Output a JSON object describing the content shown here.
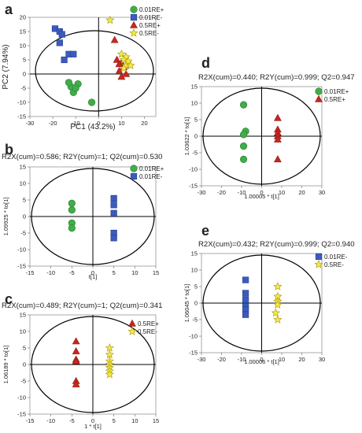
{
  "colors": {
    "green": "#3fae49",
    "blue": "#3b5bbf",
    "red": "#c8281e",
    "yellow": "#f6e84a"
  },
  "chart_data": [
    {
      "panel": "a",
      "type": "scatter",
      "title": "",
      "xlabel": "PC1 (43.2%)",
      "ylabel": "PC2 (7.94%)",
      "xlim": [
        -30,
        25
      ],
      "ylim": [
        -15,
        20
      ],
      "xticks": [
        -30,
        -20,
        -10,
        0,
        10,
        20
      ],
      "yticks": [
        -15,
        -10,
        -5,
        0,
        5,
        10,
        15,
        20
      ],
      "legend_position": "top-right",
      "series": [
        {
          "name": "0.01RE+",
          "marker": "circle",
          "color": "green",
          "points": [
            [
              -9,
              -3.5
            ],
            [
              -12,
              -4.5
            ],
            [
              -11,
              -6.5
            ],
            [
              -13,
              -3
            ],
            [
              -10,
              -5
            ],
            [
              -3,
              -10
            ]
          ]
        },
        {
          "name": "0.01RE-",
          "marker": "square",
          "color": "blue",
          "points": [
            [
              -19,
              16
            ],
            [
              -17,
              15
            ],
            [
              -16,
              14
            ],
            [
              -17,
              11
            ],
            [
              -13,
              7
            ],
            [
              -11,
              7
            ],
            [
              -15,
              5
            ]
          ]
        },
        {
          "name": "0.5RE+",
          "marker": "triangle",
          "color": "red",
          "points": [
            [
              7,
              12
            ],
            [
              8,
              5
            ],
            [
              10,
              4
            ],
            [
              9,
              3.5
            ],
            [
              11,
              2.5
            ],
            [
              9,
              1
            ],
            [
              12,
              0
            ],
            [
              10,
              -1
            ]
          ]
        },
        {
          "name": "0.5RE-",
          "marker": "star",
          "color": "yellow",
          "points": [
            [
              5,
              19
            ],
            [
              10,
              7
            ],
            [
              12,
              6
            ],
            [
              11,
              5
            ],
            [
              13,
              4.5
            ],
            [
              12,
              3
            ],
            [
              14,
              3
            ],
            [
              11,
              2
            ]
          ]
        }
      ]
    },
    {
      "panel": "b",
      "type": "scatter",
      "title": "R2X(cum)=0.586; R2Y(cum)=1; Q2(cum)=0.530",
      "xlabel": "t[1]",
      "ylabel": "1.09925 * to[1]",
      "xlim": [
        -15,
        15
      ],
      "ylim": [
        -15,
        15
      ],
      "xticks": [
        -15,
        -10,
        -5,
        0,
        5,
        10,
        15
      ],
      "yticks": [
        -15,
        -10,
        -5,
        0,
        5,
        10,
        15
      ],
      "legend_position": "top-right",
      "series": [
        {
          "name": "0.01RE+",
          "marker": "circle",
          "color": "green",
          "points": [
            [
              -5,
              4
            ],
            [
              -5,
              2
            ],
            [
              -5,
              -2
            ],
            [
              -5,
              -3.5
            ]
          ]
        },
        {
          "name": "0.01RE-",
          "marker": "square",
          "color": "blue",
          "points": [
            [
              5,
              5.5
            ],
            [
              5,
              3.5
            ],
            [
              5,
              1
            ],
            [
              5,
              -5
            ],
            [
              5,
              -6.5
            ]
          ]
        }
      ]
    },
    {
      "panel": "c",
      "type": "scatter",
      "title": "R2X(cum)=0.489; R2Y(cum)=1; Q2(cum)=0.341",
      "xlabel": "1 * t[1]",
      "ylabel": "1.06189 * to[1]",
      "xlim": [
        -15,
        15
      ],
      "ylim": [
        -15,
        15
      ],
      "xticks": [
        -15,
        -10,
        -5,
        0,
        5,
        10,
        15
      ],
      "yticks": [
        -15,
        -10,
        -5,
        0,
        5,
        10,
        15
      ],
      "legend_position": "top-right",
      "series": [
        {
          "name": "0.5RE+",
          "marker": "triangle",
          "color": "red",
          "points": [
            [
              -4,
              7
            ],
            [
              -4,
              4
            ],
            [
              -4,
              1.5
            ],
            [
              -4,
              1
            ],
            [
              -4,
              -5
            ],
            [
              -4,
              -6
            ]
          ]
        },
        {
          "name": "0.5RE-",
          "marker": "star",
          "color": "yellow",
          "points": [
            [
              4,
              5
            ],
            [
              4,
              3
            ],
            [
              4,
              1
            ],
            [
              4,
              0
            ],
            [
              4,
              -1
            ],
            [
              4,
              -2
            ],
            [
              4,
              -3
            ]
          ]
        }
      ]
    },
    {
      "panel": "d",
      "type": "scatter",
      "title": "R2X(cum)=0.440; R2Y(cum)=0.999; Q2=0.947",
      "xlabel": "1.00005 * t[1]",
      "ylabel": "1.03622 * to[1]",
      "xlim": [
        -30,
        30
      ],
      "ylim": [
        -15,
        15
      ],
      "xticks": [
        -30,
        -20,
        -10,
        0,
        10,
        20,
        30
      ],
      "yticks": [
        -15,
        -10,
        -5,
        0,
        5,
        10,
        15
      ],
      "legend_position": "top-right",
      "series": [
        {
          "name": "0.01RE+",
          "marker": "circle",
          "color": "green",
          "points": [
            [
              -9,
              9.5
            ],
            [
              -8,
              1.5
            ],
            [
              -9,
              0.5
            ],
            [
              -9,
              -3
            ],
            [
              -9,
              -7
            ]
          ]
        },
        {
          "name": "0.5RE+",
          "marker": "triangle",
          "color": "red",
          "points": [
            [
              8,
              5.5
            ],
            [
              8,
              2
            ],
            [
              8,
              1
            ],
            [
              8,
              0
            ],
            [
              8,
              -1
            ],
            [
              8,
              -7
            ]
          ]
        }
      ]
    },
    {
      "panel": "e",
      "type": "scatter",
      "title": "R2X(cum)=0.432; R2Y(cum)=0.999; Q2=0.940",
      "xlabel": "1.00006 * t[1]",
      "ylabel": "1.06045 * to[1]",
      "xlim": [
        -30,
        30
      ],
      "ylim": [
        -15,
        15
      ],
      "xticks": [
        -30,
        -20,
        -10,
        0,
        10,
        20,
        30
      ],
      "yticks": [
        -15,
        -10,
        -5,
        0,
        5,
        10,
        15
      ],
      "legend_position": "top-right",
      "series": [
        {
          "name": "0.01RE-",
          "marker": "square",
          "color": "blue",
          "points": [
            [
              -8,
              7
            ],
            [
              -8,
              3
            ],
            [
              -8,
              1
            ],
            [
              -8,
              -1
            ],
            [
              -8,
              -2
            ],
            [
              -8,
              -3.5
            ]
          ]
        },
        {
          "name": "0.5RE-",
          "marker": "star",
          "color": "yellow",
          "points": [
            [
              8,
              5
            ],
            [
              8,
              2
            ],
            [
              8,
              0.5
            ],
            [
              8,
              -0.5
            ],
            [
              7,
              -3
            ],
            [
              8,
              -5
            ]
          ]
        }
      ]
    }
  ]
}
